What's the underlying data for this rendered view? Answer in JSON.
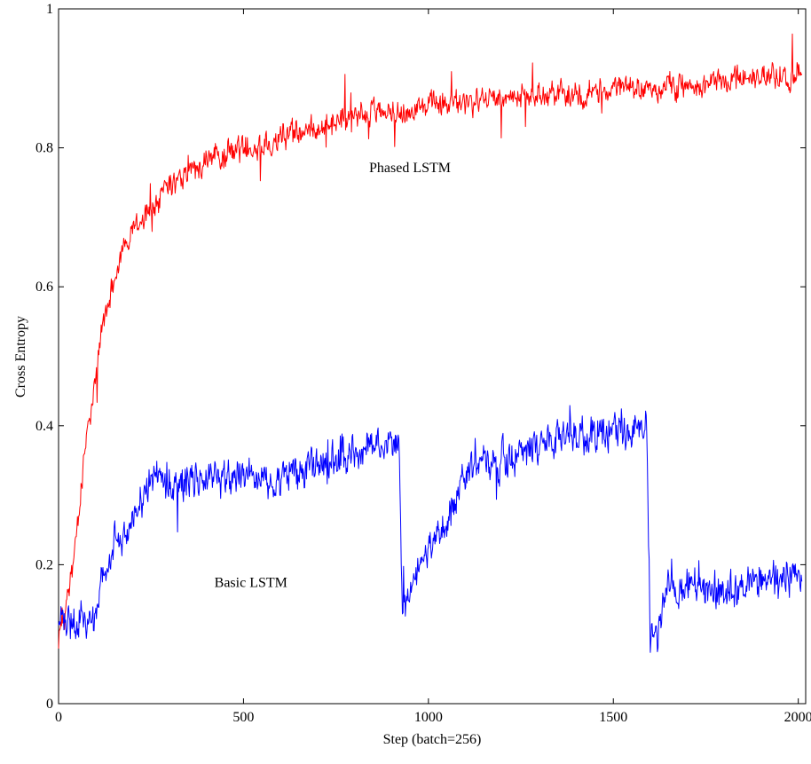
{
  "chart_data": {
    "type": "line",
    "title": "",
    "xlabel": "Step (batch=256)",
    "ylabel": "Cross Entropy",
    "xlim": [
      0,
      2020
    ],
    "ylim": [
      0,
      1
    ],
    "x_ticks": [
      0,
      500,
      1000,
      1500,
      2000
    ],
    "y_ticks": [
      0,
      0.2,
      0.4,
      0.6,
      0.8,
      1
    ],
    "y_tick_labels": [
      "0",
      "0.2",
      "0.4",
      "0.6",
      "0.8",
      "1"
    ],
    "grid": false,
    "legend": "none",
    "series": [
      {
        "name": "Phased LSTM",
        "color": "#ff0000",
        "x": [
          0,
          20,
          40,
          60,
          80,
          100,
          130,
          160,
          200,
          250,
          300,
          350,
          400,
          450,
          500,
          600,
          700,
          800,
          900,
          1000,
          1100,
          1200,
          1300,
          1400,
          1500,
          1600,
          1700,
          1800,
          1900,
          2000,
          2010
        ],
        "y": [
          0.1,
          0.13,
          0.2,
          0.3,
          0.4,
          0.48,
          0.57,
          0.63,
          0.68,
          0.71,
          0.74,
          0.76,
          0.78,
          0.79,
          0.8,
          0.815,
          0.83,
          0.845,
          0.855,
          0.86,
          0.865,
          0.87,
          0.875,
          0.88,
          0.885,
          0.885,
          0.89,
          0.895,
          0.9,
          0.905,
          0.905
        ]
      },
      {
        "name": "Basic LSTM",
        "color": "#0000ff",
        "x": [
          0,
          50,
          100,
          120,
          150,
          200,
          250,
          300,
          400,
          500,
          600,
          700,
          800,
          900,
          920,
          930,
          950,
          1000,
          1050,
          1100,
          1200,
          1300,
          1400,
          1500,
          1590,
          1600,
          1620,
          1650,
          1700,
          1800,
          1900,
          2000,
          2010
        ],
        "y": [
          0.12,
          0.115,
          0.12,
          0.19,
          0.23,
          0.27,
          0.32,
          0.32,
          0.32,
          0.33,
          0.32,
          0.34,
          0.36,
          0.38,
          0.38,
          0.12,
          0.16,
          0.22,
          0.26,
          0.33,
          0.35,
          0.37,
          0.38,
          0.39,
          0.4,
          0.1,
          0.1,
          0.17,
          0.17,
          0.16,
          0.18,
          0.19,
          0.19
        ]
      }
    ],
    "annotations": [
      {
        "text": "Phased LSTM",
        "x": 950,
        "y": 0.765
      },
      {
        "text": "Basic LSTM",
        "x": 520,
        "y": 0.168
      }
    ]
  }
}
